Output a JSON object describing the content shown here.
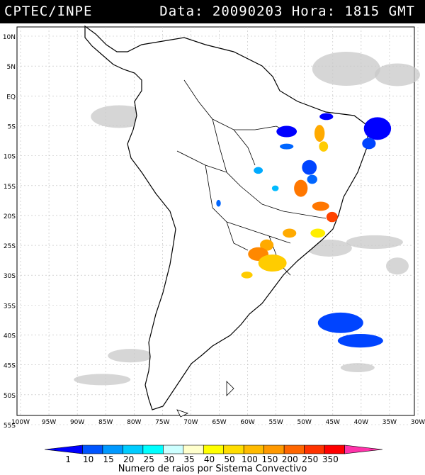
{
  "header": {
    "left": "CPTEC/INPE",
    "right": "Data: 20090203 Hora: 1815 GMT"
  },
  "axes": {
    "lat_labels": [
      "10N",
      "5N",
      "EQ",
      "5S",
      "10S",
      "15S",
      "20S",
      "25S",
      "30S",
      "35S",
      "40S",
      "45S",
      "50S",
      "55S"
    ],
    "lon_labels": [
      "100W",
      "95W",
      "90W",
      "85W",
      "80W",
      "75W",
      "70W",
      "65W",
      "60W",
      "55W",
      "50W",
      "45W",
      "40W",
      "35W",
      "30W"
    ],
    "lat_range": [
      10,
      -55
    ],
    "lon_range": [
      -100,
      -30
    ]
  },
  "colorbar": {
    "title": "Numero de raios por Sistema Convectivo",
    "ticks": [
      "1",
      "10",
      "15",
      "20",
      "25",
      "30",
      "35",
      "40",
      "50",
      "100",
      "150",
      "200",
      "250",
      "350"
    ],
    "colors": [
      "#0000ff",
      "#0055ff",
      "#0099ff",
      "#00ccff",
      "#00ffff",
      "#ccffff",
      "#ffffcc",
      "#ffff00",
      "#ffdd00",
      "#ffbb00",
      "#ff9900",
      "#ff6600",
      "#ff3300",
      "#ff0000",
      "#ff33aa"
    ]
  },
  "systems": [
    {
      "lon": -45.5,
      "lat": -5.0,
      "rx": 1.2,
      "ry": 0.6,
      "color": "#0000ff"
    },
    {
      "lon": -36.5,
      "lat": -7.0,
      "rx": 2.4,
      "ry": 2.0,
      "color": "#0000ff"
    },
    {
      "lon": -38.0,
      "lat": -9.5,
      "rx": 1.2,
      "ry": 1.0,
      "color": "#0044ff"
    },
    {
      "lon": -52.5,
      "lat": -7.5,
      "rx": 1.8,
      "ry": 1.0,
      "color": "#0000ff"
    },
    {
      "lon": -52.5,
      "lat": -10.0,
      "rx": 1.2,
      "ry": 0.5,
      "color": "#0066ff"
    },
    {
      "lon": -46.7,
      "lat": -7.8,
      "rx": 0.9,
      "ry": 1.5,
      "color": "#ffaa00"
    },
    {
      "lon": -46.0,
      "lat": -10.0,
      "rx": 0.8,
      "ry": 0.9,
      "color": "#ffcc00"
    },
    {
      "lon": -48.5,
      "lat": -13.5,
      "rx": 1.3,
      "ry": 1.3,
      "color": "#0044ff"
    },
    {
      "lon": -57.5,
      "lat": -14.0,
      "rx": 0.8,
      "ry": 0.6,
      "color": "#00aaff"
    },
    {
      "lon": -50.0,
      "lat": -17.0,
      "rx": 1.2,
      "ry": 1.5,
      "color": "#ff7700"
    },
    {
      "lon": -48.0,
      "lat": -15.5,
      "rx": 0.9,
      "ry": 0.8,
      "color": "#0066ff"
    },
    {
      "lon": -54.5,
      "lat": -17.0,
      "rx": 0.6,
      "ry": 0.5,
      "color": "#00bbff"
    },
    {
      "lon": -46.5,
      "lat": -20.0,
      "rx": 1.5,
      "ry": 0.8,
      "color": "#ff7700"
    },
    {
      "lon": -44.5,
      "lat": -21.8,
      "rx": 1.0,
      "ry": 0.9,
      "color": "#ff4400"
    },
    {
      "lon": -47.0,
      "lat": -24.5,
      "rx": 1.3,
      "ry": 0.8,
      "color": "#ffee00"
    },
    {
      "lon": -52.0,
      "lat": -24.5,
      "rx": 1.2,
      "ry": 0.8,
      "color": "#ffaa00"
    },
    {
      "lon": -56.0,
      "lat": -26.5,
      "rx": 1.2,
      "ry": 1.0,
      "color": "#ffaa00"
    },
    {
      "lon": -57.5,
      "lat": -28.0,
      "rx": 1.8,
      "ry": 1.2,
      "color": "#ff8800"
    },
    {
      "lon": -55.0,
      "lat": -29.5,
      "rx": 2.5,
      "ry": 1.5,
      "color": "#ffcc00"
    },
    {
      "lon": -59.5,
      "lat": -31.5,
      "rx": 1.0,
      "ry": 0.6,
      "color": "#ffcc00"
    },
    {
      "lon": -64.5,
      "lat": -19.5,
      "rx": 0.4,
      "ry": 0.6,
      "color": "#0066ff"
    },
    {
      "lon": -43.0,
      "lat": -39.5,
      "rx": 4.0,
      "ry": 1.8,
      "color": "#0044ff"
    },
    {
      "lon": -39.5,
      "lat": -42.5,
      "rx": 4.0,
      "ry": 1.2,
      "color": "#0044ff"
    }
  ],
  "clouds": [
    {
      "lon": -42,
      "lat": 3,
      "rx": 6,
      "ry": 3
    },
    {
      "lon": -33,
      "lat": 2,
      "rx": 4,
      "ry": 2
    },
    {
      "lon": -70,
      "lat": 1,
      "rx": 4,
      "ry": 2
    },
    {
      "lon": -62,
      "lat": -6,
      "rx": 5,
      "ry": 3
    },
    {
      "lon": -55,
      "lat": -3,
      "rx": 4,
      "ry": 2
    },
    {
      "lon": -68,
      "lat": -10,
      "rx": 4,
      "ry": 3
    },
    {
      "lon": -57,
      "lat": -16,
      "rx": 4,
      "ry": 3
    },
    {
      "lon": -82,
      "lat": -5,
      "rx": 5,
      "ry": 2
    },
    {
      "lon": -45,
      "lat": -27,
      "rx": 4,
      "ry": 1.5
    },
    {
      "lon": -37,
      "lat": -26,
      "rx": 5,
      "ry": 1.2
    },
    {
      "lon": -80,
      "lat": -45,
      "rx": 4,
      "ry": 1.2
    },
    {
      "lon": -85,
      "lat": -49,
      "rx": 5,
      "ry": 1.0
    },
    {
      "lon": -40,
      "lat": -47,
      "rx": 3,
      "ry": 0.8
    },
    {
      "lon": -33,
      "lat": -30,
      "rx": 2,
      "ry": 1.5
    }
  ]
}
